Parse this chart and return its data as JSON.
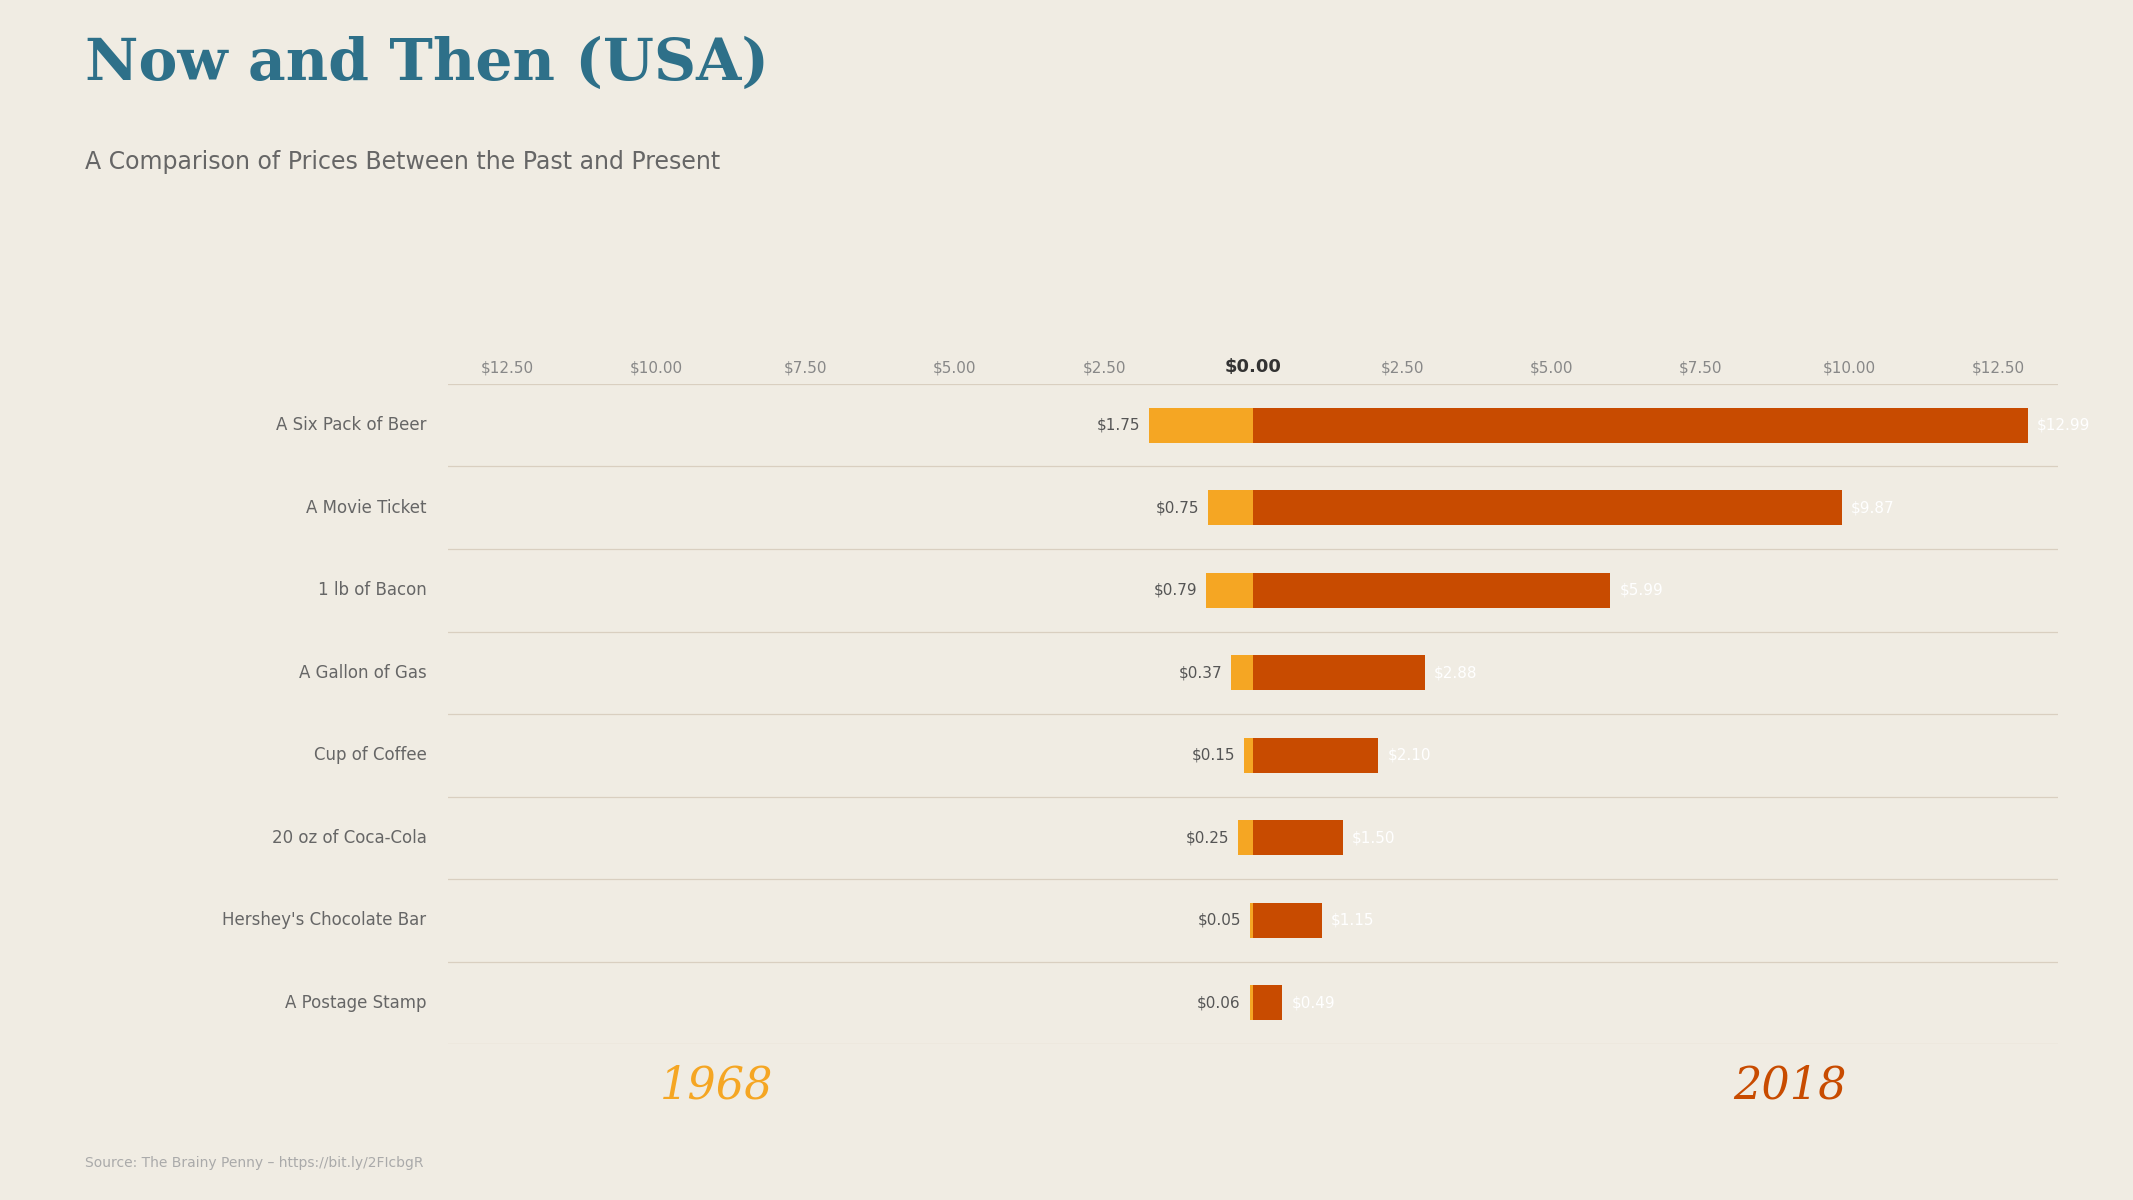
{
  "title": "Now and Then (USA)",
  "subtitle": "A Comparison of Prices Between the Past and Present",
  "source": "Source: The Brainy Penny – https://bit.ly/2FIcbgR",
  "year_left": "1968",
  "year_right": "2018",
  "categories": [
    "A Six Pack of Beer",
    "A Movie Ticket",
    "1 lb of Bacon",
    "A Gallon of Gas",
    "Cup of Coffee",
    "20 oz of Coca-Cola",
    "Hershey's Chocolate Bar",
    "A Postage Stamp"
  ],
  "values_1968": [
    1.75,
    0.75,
    0.79,
    0.37,
    0.15,
    0.25,
    0.05,
    0.06
  ],
  "values_2018": [
    12.99,
    9.87,
    5.99,
    2.88,
    2.1,
    1.5,
    1.15,
    0.49
  ],
  "color_left": "#F5A623",
  "color_right": "#C84B00",
  "color_bg": "#F0ECE3",
  "color_title": "#2E7089",
  "color_subtitle": "#666666",
  "color_axis_labels": "#888888",
  "color_category_labels": "#666666",
  "color_year_left": "#F5A623",
  "color_year_right": "#C84B00",
  "color_separator": "#D9CFC0",
  "xlim": 13.5,
  "tick_vals": [
    -12.5,
    -10.0,
    -7.5,
    -5.0,
    -2.5,
    0.0,
    2.5,
    5.0,
    7.5,
    10.0,
    12.5
  ],
  "tick_labels": [
    "$12.50",
    "$10.00",
    "$7.50",
    "$5.00",
    "$2.50",
    "$0.00",
    "$2.50",
    "$5.00",
    "$7.50",
    "$10.00",
    "$12.50"
  ]
}
